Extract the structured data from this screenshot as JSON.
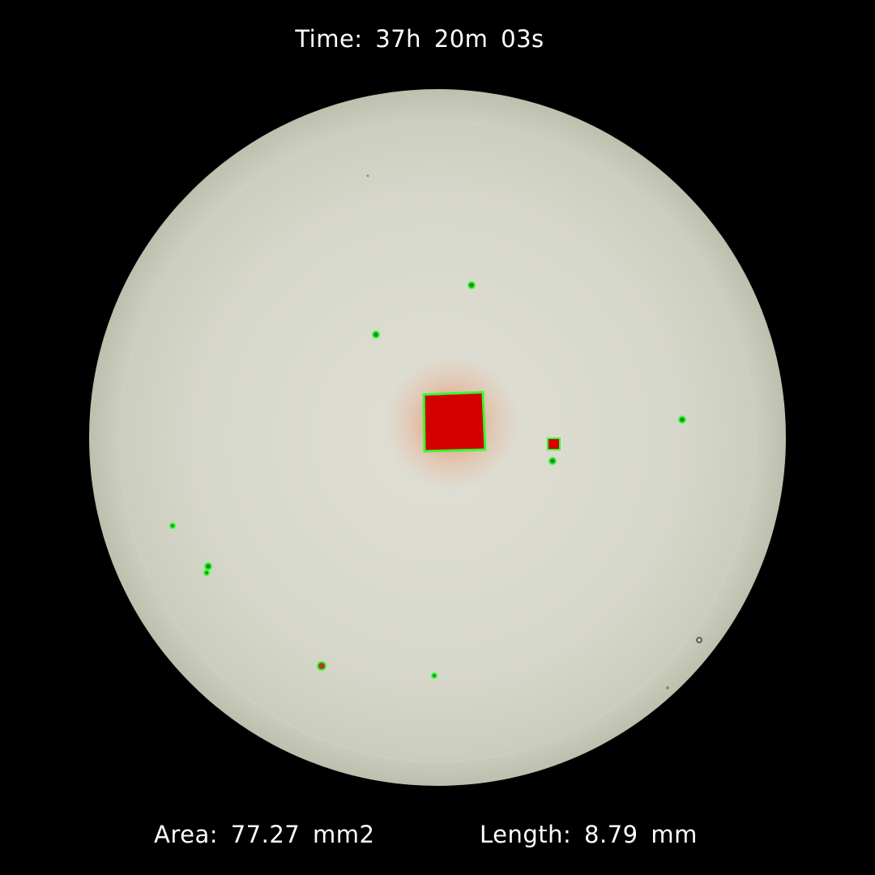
{
  "header": {
    "time_label": "Time:",
    "time_value": "37h 20m 03s"
  },
  "footer": {
    "area_label": "Area:",
    "area_value": "77.27 mm2",
    "length_label": "Length: ",
    "length_value": "8.79 mm"
  },
  "colors": {
    "background": "#000000",
    "dish": "#dcdccf",
    "specimen": "#d40000",
    "contour": "#33ff33",
    "text": "#ffffff"
  }
}
